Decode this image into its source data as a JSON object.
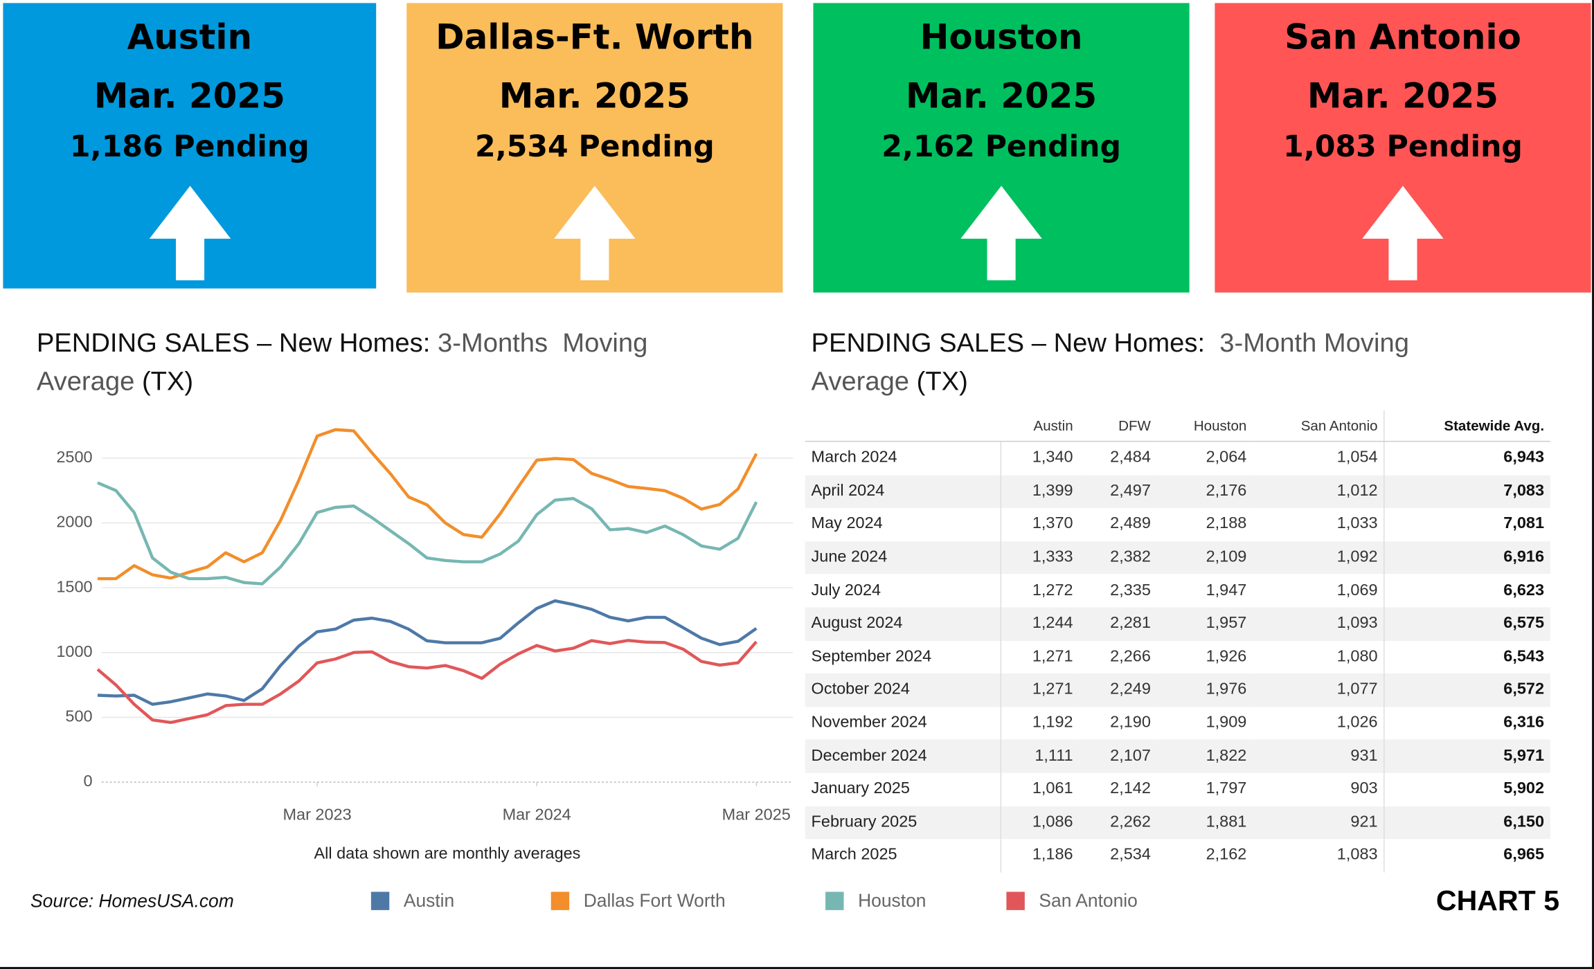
{
  "cards": [
    {
      "city": "Austin",
      "period": "Mar. 2025",
      "pending": "1,186 Pending",
      "color": "#0099dd"
    },
    {
      "city": "Dallas-Ft. Worth",
      "period": "Mar. 2025",
      "pending": "2,534 Pending",
      "color": "#fbbc5a"
    },
    {
      "city": "Houston",
      "period": "Mar. 2025",
      "pending": "2,162 Pending",
      "color": "#00bf5f"
    },
    {
      "city": "San Antonio",
      "period": "Mar. 2025",
      "pending": "1,083 Pending",
      "color": "#ff5555"
    }
  ],
  "chart_data": {
    "type": "line",
    "title": [
      {
        "text": "PENDING SALES – New Homes: ",
        "color": "#111"
      },
      {
        "text": "3-Months  Moving Average",
        "color": "#555"
      },
      {
        "text": " (TX)",
        "color": "#111"
      }
    ],
    "annotation": "All data shown are monthly averages",
    "x": [
      "2022-03",
      "2022-04",
      "2022-05",
      "2022-06",
      "2022-07",
      "2022-08",
      "2022-09",
      "2022-10",
      "2022-11",
      "2022-12",
      "2023-01",
      "2023-02",
      "2023-03",
      "2023-04",
      "2023-05",
      "2023-06",
      "2023-07",
      "2023-08",
      "2023-09",
      "2023-10",
      "2023-11",
      "2023-12",
      "2024-01",
      "2024-02",
      "2024-03",
      "2024-04",
      "2024-05",
      "2024-06",
      "2024-07",
      "2024-08",
      "2024-09",
      "2024-10",
      "2024-11",
      "2024-12",
      "2025-01",
      "2025-02",
      "2025-03"
    ],
    "xlim": [
      "2022-03",
      "2025-05"
    ],
    "xticks": [
      {
        "value": "2023-03",
        "label": "Mar 2023"
      },
      {
        "value": "2024-03",
        "label": "Mar 2024"
      },
      {
        "value": "2025-03",
        "label": "Mar 2025"
      }
    ],
    "ylim": [
      0,
      2900
    ],
    "yticks": [
      0,
      500,
      1000,
      1500,
      2000,
      2500
    ],
    "grid": true,
    "series": [
      {
        "name": "Austin",
        "color": "#4e79a7",
        "values": [
          670,
          665,
          670,
          600,
          620,
          650,
          680,
          665,
          630,
          720,
          900,
          1050,
          1160,
          1180,
          1250,
          1265,
          1240,
          1180,
          1090,
          1075,
          1075,
          1075,
          1110,
          1230,
          1340,
          1399,
          1370,
          1333,
          1272,
          1244,
          1271,
          1271,
          1192,
          1111,
          1061,
          1086,
          1186
        ]
      },
      {
        "name": "Dallas Fort Worth",
        "color": "#f28e2b",
        "values": [
          1570,
          1570,
          1670,
          1600,
          1575,
          1620,
          1660,
          1770,
          1700,
          1770,
          2020,
          2330,
          2670,
          2720,
          2710,
          2540,
          2380,
          2200,
          2140,
          2000,
          1910,
          1890,
          2070,
          2280,
          2484,
          2497,
          2489,
          2382,
          2335,
          2281,
          2266,
          2249,
          2190,
          2107,
          2142,
          2262,
          2534
        ]
      },
      {
        "name": "Houston",
        "color": "#76b7b2",
        "values": [
          2310,
          2250,
          2080,
          1730,
          1620,
          1570,
          1570,
          1580,
          1540,
          1530,
          1660,
          1840,
          2080,
          2120,
          2130,
          2040,
          1940,
          1840,
          1730,
          1710,
          1700,
          1700,
          1760,
          1860,
          2064,
          2176,
          2188,
          2109,
          1947,
          1957,
          1926,
          1976,
          1909,
          1822,
          1797,
          1881,
          2162
        ]
      },
      {
        "name": "San Antonio",
        "color": "#e15759",
        "values": [
          870,
          750,
          600,
          480,
          460,
          490,
          520,
          590,
          600,
          600,
          680,
          780,
          920,
          950,
          1000,
          1005,
          930,
          890,
          880,
          900,
          860,
          800,
          910,
          990,
          1054,
          1012,
          1033,
          1092,
          1069,
          1093,
          1080,
          1077,
          1026,
          931,
          903,
          921,
          1083
        ]
      }
    ]
  },
  "table": {
    "title": [
      {
        "text": "PENDING SALES – New Homes:  ",
        "color": "#111"
      },
      {
        "text": "3-Month Moving Average",
        "color": "#555"
      },
      {
        "text": " (TX)",
        "color": "#111"
      }
    ],
    "columns": [
      "Austin",
      "DFW",
      "Houston",
      "San Antonio",
      "Statewide Avg."
    ],
    "rows": [
      {
        "month": "March 2024",
        "values": [
          "1,340",
          "2,484",
          "2,064",
          "1,054",
          "6,943"
        ]
      },
      {
        "month": "April 2024",
        "values": [
          "1,399",
          "2,497",
          "2,176",
          "1,012",
          "7,083"
        ]
      },
      {
        "month": "May 2024",
        "values": [
          "1,370",
          "2,489",
          "2,188",
          "1,033",
          "7,081"
        ]
      },
      {
        "month": "June 2024",
        "values": [
          "1,333",
          "2,382",
          "2,109",
          "1,092",
          "6,916"
        ]
      },
      {
        "month": "July 2024",
        "values": [
          "1,272",
          "2,335",
          "1,947",
          "1,069",
          "6,623"
        ]
      },
      {
        "month": "August 2024",
        "values": [
          "1,244",
          "2,281",
          "1,957",
          "1,093",
          "6,575"
        ]
      },
      {
        "month": "September 2024",
        "values": [
          "1,271",
          "2,266",
          "1,926",
          "1,080",
          "6,543"
        ]
      },
      {
        "month": "October 2024",
        "values": [
          "1,271",
          "2,249",
          "1,976",
          "1,077",
          "6,572"
        ]
      },
      {
        "month": "November 2024",
        "values": [
          "1,192",
          "2,190",
          "1,909",
          "1,026",
          "6,316"
        ]
      },
      {
        "month": "December 2024",
        "values": [
          "1,111",
          "2,107",
          "1,822",
          "931",
          "5,971"
        ]
      },
      {
        "month": "January 2025",
        "values": [
          "1,061",
          "2,142",
          "1,797",
          "903",
          "5,902"
        ]
      },
      {
        "month": "February 2025",
        "values": [
          "1,086",
          "2,262",
          "1,881",
          "921",
          "6,150"
        ]
      },
      {
        "month": "March 2025",
        "values": [
          "1,186",
          "2,534",
          "2,162",
          "1,083",
          "6,965"
        ]
      }
    ]
  },
  "source": "Source: HomesUSA.com",
  "chart_number": "CHART 5"
}
